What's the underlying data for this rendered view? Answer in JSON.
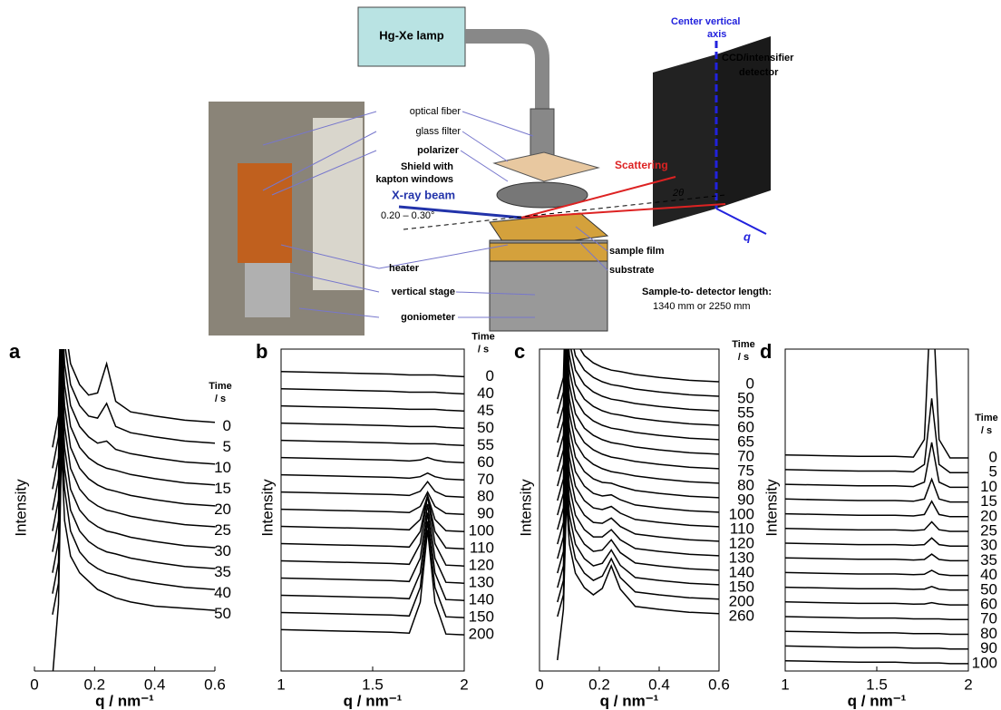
{
  "diagram": {
    "lamp": "Hg-Xe lamp",
    "optical_fiber": "optical fiber",
    "glass_filter": "glass filter",
    "polarizer": "polarizer",
    "shield": [
      "Shield with",
      "kapton windows"
    ],
    "xray": "X-ray beam",
    "angle": "0.20 – 0.30°",
    "heater": "heater",
    "vertical_stage": "vertical stage",
    "goniometer": "goniometer",
    "sample_film": "sample film",
    "substrate": "substrate",
    "length": [
      "Sample-to- detector length:",
      "1340 mm  or 2250 mm"
    ],
    "scattering": "Scattering",
    "two_theta": "2θ",
    "q": "q",
    "center_axis": [
      "Center vertical",
      "axis"
    ],
    "detector": [
      "CCD/intensifier",
      "detector"
    ]
  },
  "chart_data": [
    {
      "type": "line",
      "panel": "a",
      "frame": false,
      "color": "#000",
      "xlabel": "q / nm⁻¹",
      "ylabel": "Intensity",
      "legend_title": "Time",
      "legend_unit": "/ s",
      "xlim": [
        0,
        0.6
      ],
      "xticks": [
        0,
        0.2,
        0.4,
        0.6
      ],
      "ylim": [
        -2.7,
        12.7
      ],
      "x": [
        0.06,
        0.08,
        0.09,
        0.1,
        0.12,
        0.15,
        0.18,
        0.21,
        0.24,
        0.27,
        0.32,
        0.4,
        0.5,
        0.6
      ],
      "series": [
        {
          "name": "0",
          "values": [
            -1,
            0.5,
            8,
            5,
            3,
            2,
            1.5,
            1.6,
            3,
            1.2,
            0.7,
            0.5,
            0.3,
            0.2
          ]
        },
        {
          "name": "5",
          "values": [
            -1,
            0.5,
            8,
            5,
            3,
            2,
            1.5,
            1.4,
            2.1,
            1,
            0.7,
            0.5,
            0.3,
            0.2
          ]
        },
        {
          "name": "10",
          "values": [
            -1,
            0.5,
            8,
            5,
            3,
            2,
            1.5,
            1.2,
            1.3,
            0.9,
            0.7,
            0.5,
            0.3,
            0.2
          ]
        },
        {
          "name": "15",
          "values": [
            -1,
            0.5,
            8,
            5,
            3,
            2,
            1.5,
            1.2,
            1,
            0.9,
            0.7,
            0.5,
            0.3,
            0.2
          ]
        },
        {
          "name": "20",
          "values": [
            -1,
            0.5,
            8,
            5,
            3,
            2,
            1.5,
            1.2,
            1,
            0.9,
            0.7,
            0.5,
            0.3,
            0.2
          ]
        },
        {
          "name": "25",
          "values": [
            -1,
            0.5,
            8,
            5,
            3,
            2,
            1.5,
            1.2,
            1,
            0.9,
            0.7,
            0.5,
            0.3,
            0.2
          ]
        },
        {
          "name": "30",
          "values": [
            -1,
            0.5,
            8,
            5,
            3,
            2,
            1.5,
            1.2,
            1,
            0.9,
            0.7,
            0.5,
            0.3,
            0.2
          ]
        },
        {
          "name": "35",
          "values": [
            -1,
            0.5,
            8,
            5,
            3,
            2,
            1.5,
            1.2,
            1,
            0.9,
            0.7,
            0.5,
            0.3,
            0.2
          ]
        },
        {
          "name": "40",
          "values": [
            -1,
            0.5,
            8,
            5,
            3,
            2,
            1.5,
            1.2,
            1,
            0.9,
            0.7,
            0.5,
            0.3,
            0.2
          ]
        },
        {
          "name": "50",
          "values": [
            -3,
            0.5,
            8,
            4.5,
            2.8,
            2,
            1.6,
            1.2,
            1,
            0.8,
            0.6,
            0.4,
            0.3,
            0.2
          ]
        }
      ]
    },
    {
      "type": "line",
      "panel": "b",
      "frame": true,
      "color": "#000",
      "xlabel": "q / nm⁻¹",
      "ylabel": "Intensity",
      "legend_title": "Time",
      "legend_unit": "/ s",
      "xlim": [
        1,
        2
      ],
      "xticks": [
        1,
        1.5,
        2
      ],
      "ylim": [
        -2.1,
        16.6
      ],
      "x": [
        1,
        1.2,
        1.4,
        1.6,
        1.7,
        1.76,
        1.8,
        1.84,
        1.9,
        2
      ],
      "series": [
        {
          "name": "0",
          "values": [
            0.3,
            0.25,
            0.2,
            0.15,
            0.1,
            0.1,
            0.1,
            0.1,
            0.05,
            0
          ]
        },
        {
          "name": "40",
          "values": [
            0.3,
            0.25,
            0.2,
            0.15,
            0.1,
            0.1,
            0.1,
            0.1,
            0.05,
            0
          ]
        },
        {
          "name": "45",
          "values": [
            0.3,
            0.25,
            0.2,
            0.15,
            0.1,
            0.1,
            0.1,
            0.1,
            0.05,
            0
          ]
        },
        {
          "name": "50",
          "values": [
            0.3,
            0.25,
            0.2,
            0.15,
            0.1,
            0.1,
            0.1,
            0.1,
            0.05,
            0
          ]
        },
        {
          "name": "55",
          "values": [
            0.3,
            0.25,
            0.2,
            0.15,
            0.1,
            0.1,
            0.1,
            0.1,
            0.05,
            0
          ]
        },
        {
          "name": "60",
          "values": [
            0.3,
            0.25,
            0.2,
            0.15,
            0.1,
            0.16,
            0.3,
            0.16,
            0.05,
            0
          ]
        },
        {
          "name": "70",
          "values": [
            0.3,
            0.25,
            0.2,
            0.15,
            0.1,
            0.19,
            0.4,
            0.19,
            0.05,
            0
          ]
        },
        {
          "name": "80",
          "values": [
            0.3,
            0.25,
            0.2,
            0.15,
            0.1,
            0.34,
            0.9,
            0.34,
            0.05,
            0
          ]
        },
        {
          "name": "90",
          "values": [
            0.3,
            0.25,
            0.2,
            0.15,
            0.1,
            0.46,
            1.3,
            0.46,
            0.05,
            0
          ]
        },
        {
          "name": "100",
          "values": [
            0.3,
            0.25,
            0.2,
            0.15,
            0.1,
            0.7,
            2.1,
            0.7,
            0.05,
            0
          ]
        },
        {
          "name": "110",
          "values": [
            0.3,
            0.25,
            0.2,
            0.15,
            0.1,
            1,
            3.1,
            1,
            0.05,
            0
          ]
        },
        {
          "name": "120",
          "values": [
            0.3,
            0.25,
            0.2,
            0.15,
            0.1,
            1.3,
            4.1,
            1.3,
            0.05,
            0
          ]
        },
        {
          "name": "130",
          "values": [
            0.3,
            0.25,
            0.2,
            0.15,
            0.1,
            1.45,
            4.6,
            1.45,
            0.05,
            0
          ]
        },
        {
          "name": "140",
          "values": [
            0.3,
            0.25,
            0.2,
            0.15,
            0.1,
            1.6,
            5.1,
            1.6,
            0.05,
            0
          ]
        },
        {
          "name": "150",
          "values": [
            0.3,
            0.25,
            0.2,
            0.15,
            0.1,
            1.75,
            5.6,
            1.75,
            0.05,
            0
          ]
        },
        {
          "name": "200",
          "values": [
            0.3,
            0.25,
            0.2,
            0.15,
            0.1,
            1.9,
            6.1,
            1.9,
            0.05,
            0
          ]
        }
      ]
    },
    {
      "type": "line",
      "panel": "c",
      "frame": true,
      "color": "#000",
      "xlabel": "q / nm⁻¹",
      "ylabel": "Intensity",
      "legend_title": "Time",
      "legend_unit": "/ s",
      "xlim": [
        0,
        0.6
      ],
      "xticks": [
        0,
        0.2,
        0.4,
        0.6
      ],
      "ylim": [
        -3.75,
        18.45
      ],
      "x": [
        0.06,
        0.08,
        0.09,
        0.1,
        0.12,
        0.15,
        0.18,
        0.21,
        0.24,
        0.27,
        0.32,
        0.4,
        0.5,
        0.6
      ],
      "series": [
        {
          "name": "0",
          "values": [
            -1,
            0.5,
            8,
            5,
            3,
            2,
            1.5,
            1.2,
            1,
            0.9,
            0.7,
            0.5,
            0.3,
            0.2
          ]
        },
        {
          "name": "50",
          "values": [
            -1,
            0.5,
            8,
            5,
            3,
            2,
            1.5,
            1.2,
            1,
            0.9,
            0.7,
            0.5,
            0.3,
            0.2
          ]
        },
        {
          "name": "55",
          "values": [
            -1,
            0.5,
            8,
            5,
            3,
            2,
            1.5,
            1.2,
            1,
            0.9,
            0.7,
            0.5,
            0.3,
            0.2
          ]
        },
        {
          "name": "60",
          "values": [
            -1,
            0.5,
            8,
            5,
            3,
            2,
            1.5,
            1.2,
            1,
            0.9,
            0.7,
            0.5,
            0.3,
            0.2
          ]
        },
        {
          "name": "65",
          "values": [
            -1,
            0.5,
            8,
            5,
            3,
            2,
            1.5,
            1.2,
            1,
            0.9,
            0.7,
            0.5,
            0.3,
            0.2
          ]
        },
        {
          "name": "70",
          "values": [
            -1,
            0.5,
            8,
            5,
            3,
            2,
            1.5,
            1.2,
            1,
            0.9,
            0.7,
            0.5,
            0.3,
            0.2
          ]
        },
        {
          "name": "75",
          "values": [
            -1,
            0.5,
            8,
            5,
            3,
            2,
            1.5,
            1.2,
            1,
            0.9,
            0.7,
            0.5,
            0.3,
            0.2
          ]
        },
        {
          "name": "80",
          "values": [
            -1,
            0.5,
            8,
            5,
            3,
            2,
            1.5,
            1.2,
            1,
            0.9,
            0.7,
            0.5,
            0.3,
            0.2
          ]
        },
        {
          "name": "90",
          "values": [
            -1,
            0.5,
            8,
            5,
            3,
            2,
            1.5,
            1.26,
            1.2,
            0.98,
            0.7,
            0.5,
            0.3,
            0.2
          ]
        },
        {
          "name": "100",
          "values": [
            -1,
            0.5,
            8,
            5,
            3,
            2,
            1.5,
            1.32,
            1.4,
            1.06,
            0.7,
            0.5,
            0.3,
            0.2
          ]
        },
        {
          "name": "110",
          "values": [
            -1,
            0.5,
            8,
            5,
            3,
            2,
            1.5,
            1.38,
            1.6,
            1.14,
            0.7,
            0.5,
            0.3,
            0.2
          ]
        },
        {
          "name": "120",
          "values": [
            -1,
            0.5,
            8,
            5,
            3,
            2,
            1.5,
            1.44,
            1.8,
            1.22,
            0.7,
            0.5,
            0.3,
            0.2
          ]
        },
        {
          "name": "130",
          "values": [
            -1,
            0.5,
            8,
            5,
            3,
            2,
            1.5,
            1.5,
            2,
            1.3,
            0.7,
            0.5,
            0.3,
            0.2
          ]
        },
        {
          "name": "140",
          "values": [
            -1,
            0.5,
            8,
            5,
            3,
            2,
            1.5,
            1.59,
            2.3,
            1.42,
            0.7,
            0.5,
            0.3,
            0.2
          ]
        },
        {
          "name": "150",
          "values": [
            -1,
            0.5,
            8,
            5,
            3,
            2,
            1.5,
            1.68,
            2.6,
            1.54,
            0.7,
            0.5,
            0.3,
            0.2
          ]
        },
        {
          "name": "200",
          "values": [
            -1,
            0.5,
            8,
            5,
            3,
            2,
            1.5,
            1.8,
            3,
            1.7,
            0.7,
            0.5,
            0.3,
            0.2
          ]
        },
        {
          "name": "260",
          "values": [
            -3,
            0.5,
            8,
            5,
            3,
            2,
            1.5,
            1.95,
            3.5,
            1.9,
            0.7,
            0.5,
            0.3,
            0.2
          ]
        }
      ]
    },
    {
      "type": "line",
      "panel": "d",
      "frame": true,
      "color": "#000",
      "xlabel": "q / nm⁻¹",
      "ylabel": "Intensity",
      "legend_title": "Time",
      "legend_unit": "/ s",
      "xlim": [
        1,
        2
      ],
      "xticks": [
        1,
        1.5,
        2
      ],
      "ylim": [
        -0.5,
        21.4
      ],
      "x": [
        1,
        1.2,
        1.4,
        1.6,
        1.7,
        1.76,
        1.8,
        1.84,
        1.9,
        2
      ],
      "series": [
        {
          "name": "0",
          "values": [
            0.2,
            0.15,
            0.1,
            0.1,
            0.05,
            1.25,
            12.05,
            1.25,
            0,
            0
          ]
        },
        {
          "name": "5",
          "values": [
            0.2,
            0.15,
            0.1,
            0.1,
            0.05,
            0.55,
            5.05,
            0.55,
            0,
            0
          ]
        },
        {
          "name": "10",
          "values": [
            0.2,
            0.15,
            0.1,
            0.1,
            0.05,
            0.35,
            3.05,
            0.35,
            0,
            0
          ]
        },
        {
          "name": "15",
          "values": [
            0.2,
            0.15,
            0.1,
            0.1,
            0.05,
            0.2,
            1.55,
            0.2,
            0,
            0
          ]
        },
        {
          "name": "20",
          "values": [
            0.2,
            0.15,
            0.1,
            0.1,
            0.05,
            0.15,
            1.05,
            0.15,
            0,
            0
          ]
        },
        {
          "name": "25",
          "values": [
            0.2,
            0.15,
            0.1,
            0.1,
            0.05,
            0.11,
            0.65,
            0.11,
            0,
            0
          ]
        },
        {
          "name": "30",
          "values": [
            0.2,
            0.15,
            0.1,
            0.1,
            0.05,
            0.1,
            0.55,
            0.1,
            0,
            0
          ]
        },
        {
          "name": "35",
          "values": [
            0.2,
            0.15,
            0.1,
            0.1,
            0.05,
            0.09,
            0.45,
            0.09,
            0,
            0
          ]
        },
        {
          "name": "40",
          "values": [
            0.2,
            0.15,
            0.1,
            0.1,
            0.05,
            0.08,
            0.35,
            0.08,
            0,
            0
          ]
        },
        {
          "name": "50",
          "values": [
            0.2,
            0.15,
            0.1,
            0.1,
            0.05,
            0.07,
            0.25,
            0.07,
            0,
            0
          ]
        },
        {
          "name": "60",
          "values": [
            0.2,
            0.15,
            0.1,
            0.1,
            0.05,
            0.06,
            0.15,
            0.06,
            0,
            0
          ]
        },
        {
          "name": "70",
          "values": [
            0.2,
            0.15,
            0.1,
            0.1,
            0.05,
            0.05,
            0.05,
            0.05,
            0,
            0
          ]
        },
        {
          "name": "80",
          "values": [
            0.2,
            0.15,
            0.1,
            0.1,
            0.05,
            0.05,
            0.05,
            0.05,
            0,
            0
          ]
        },
        {
          "name": "90",
          "values": [
            0.2,
            0.15,
            0.1,
            0.1,
            0.05,
            0.05,
            0.05,
            0.05,
            0,
            0
          ]
        },
        {
          "name": "100",
          "values": [
            0.2,
            0.15,
            0.1,
            0.1,
            0.05,
            0.05,
            0.05,
            0.05,
            0,
            0
          ]
        }
      ]
    }
  ]
}
